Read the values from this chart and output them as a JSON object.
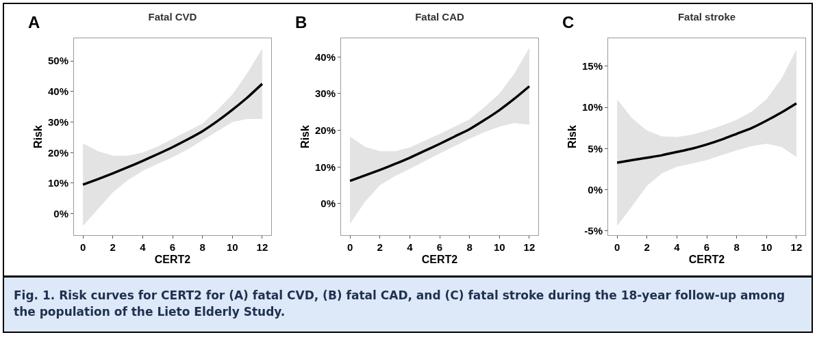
{
  "chart_data": [
    {
      "type": "line",
      "title": "Fatal CVD",
      "xlabel": "CERT2",
      "ylabel": "Risk",
      "annotations": [
        "A",
        "Fig. 1.  Risk curves for CERT2 for (A) fatal CVD, (B) fatal CAD, and (C) fatal stroke during the 18-year follow-up among the population of the Lieto Elderly Study."
      ],
      "x": [
        0,
        1,
        2,
        3,
        4,
        5,
        6,
        7,
        8,
        9,
        10,
        11,
        12
      ],
      "series": [
        {
          "color": "#000000",
          "values": [
            9.5,
            11.3,
            13.2,
            15.2,
            17.3,
            19.5,
            21.8,
            24.3,
            27,
            30.3,
            34,
            38,
            42.5
          ],
          "upper": [
            23,
            20.5,
            19,
            19,
            20,
            22,
            24.5,
            27,
            29.5,
            34,
            39,
            46,
            54
          ],
          "lower": [
            -4,
            1.5,
            7,
            11,
            14,
            16.3,
            18.5,
            21,
            24,
            27,
            30,
            31,
            31
          ]
        }
      ],
      "xlim": [
        -0.6,
        12.6
      ],
      "xticks": [
        0,
        2,
        4,
        6,
        8,
        10,
        12
      ],
      "ylim": [
        -7,
        57.4
      ],
      "yticks": [
        {
          "value": 0,
          "label": "0%"
        },
        {
          "value": 10,
          "label": "10%"
        },
        {
          "value": 20,
          "label": "20%"
        },
        {
          "value": 30,
          "label": "30%"
        },
        {
          "value": 40,
          "label": "40%"
        },
        {
          "value": 50,
          "label": "50%"
        }
      ]
    },
    {
      "type": "line",
      "title": "Fatal CAD",
      "xlabel": "CERT2",
      "ylabel": "Risk",
      "annotations": [
        "B"
      ],
      "x": [
        0,
        1,
        2,
        3,
        4,
        5,
        6,
        7,
        8,
        9,
        10,
        11,
        12
      ],
      "series": [
        {
          "color": "#000000",
          "values": [
            6.2,
            7.7,
            9.2,
            10.8,
            12.5,
            14.4,
            16.3,
            18.3,
            20.3,
            22.8,
            25.5,
            28.6,
            32
          ],
          "upper": [
            18.3,
            15.5,
            14.3,
            14.3,
            15.3,
            17.2,
            19,
            21,
            23,
            26.3,
            30,
            35.5,
            42.5
          ],
          "lower": [
            -5.5,
            0.5,
            5,
            7.5,
            9.5,
            11.6,
            13.7,
            15.7,
            17.7,
            19.5,
            21,
            22,
            21.5
          ]
        }
      ],
      "xlim": [
        -0.6,
        12.6
      ],
      "xticks": [
        0,
        2,
        4,
        6,
        8,
        10,
        12
      ],
      "ylim": [
        -8.6,
        45.1
      ],
      "yticks": [
        {
          "value": 0,
          "label": "0%"
        },
        {
          "value": 10,
          "label": "10%"
        },
        {
          "value": 20,
          "label": "20%"
        },
        {
          "value": 30,
          "label": "30%"
        },
        {
          "value": 40,
          "label": "40%"
        }
      ]
    },
    {
      "type": "line",
      "title": "Fatal stroke",
      "xlabel": "CERT2",
      "ylabel": "Risk",
      "annotations": [
        "C"
      ],
      "x": [
        0,
        1,
        2,
        3,
        4,
        5,
        6,
        7,
        8,
        9,
        10,
        11,
        12
      ],
      "series": [
        {
          "color": "#000000",
          "values": [
            3.3,
            3.6,
            3.9,
            4.2,
            4.6,
            5,
            5.5,
            6.1,
            6.8,
            7.5,
            8.4,
            9.4,
            10.5
          ],
          "upper": [
            11,
            8.7,
            7.2,
            6.5,
            6.4,
            6.7,
            7.2,
            7.8,
            8.5,
            9.5,
            11,
            13.5,
            17
          ],
          "lower": [
            -4.4,
            -2,
            0.5,
            2,
            2.8,
            3.2,
            3.6,
            4.2,
            4.8,
            5.3,
            5.6,
            5.2,
            4
          ]
        }
      ],
      "xlim": [
        -0.6,
        12.6
      ],
      "xticks": [
        0,
        2,
        4,
        6,
        8,
        10,
        12
      ],
      "ylim": [
        -5.5,
        18.4
      ],
      "yticks": [
        {
          "value": -5,
          "label": "-5%"
        },
        {
          "value": 0,
          "label": "0%"
        },
        {
          "value": 5,
          "label": "5%"
        },
        {
          "value": 10,
          "label": "10%"
        },
        {
          "value": 15,
          "label": "15%"
        }
      ]
    }
  ]
}
